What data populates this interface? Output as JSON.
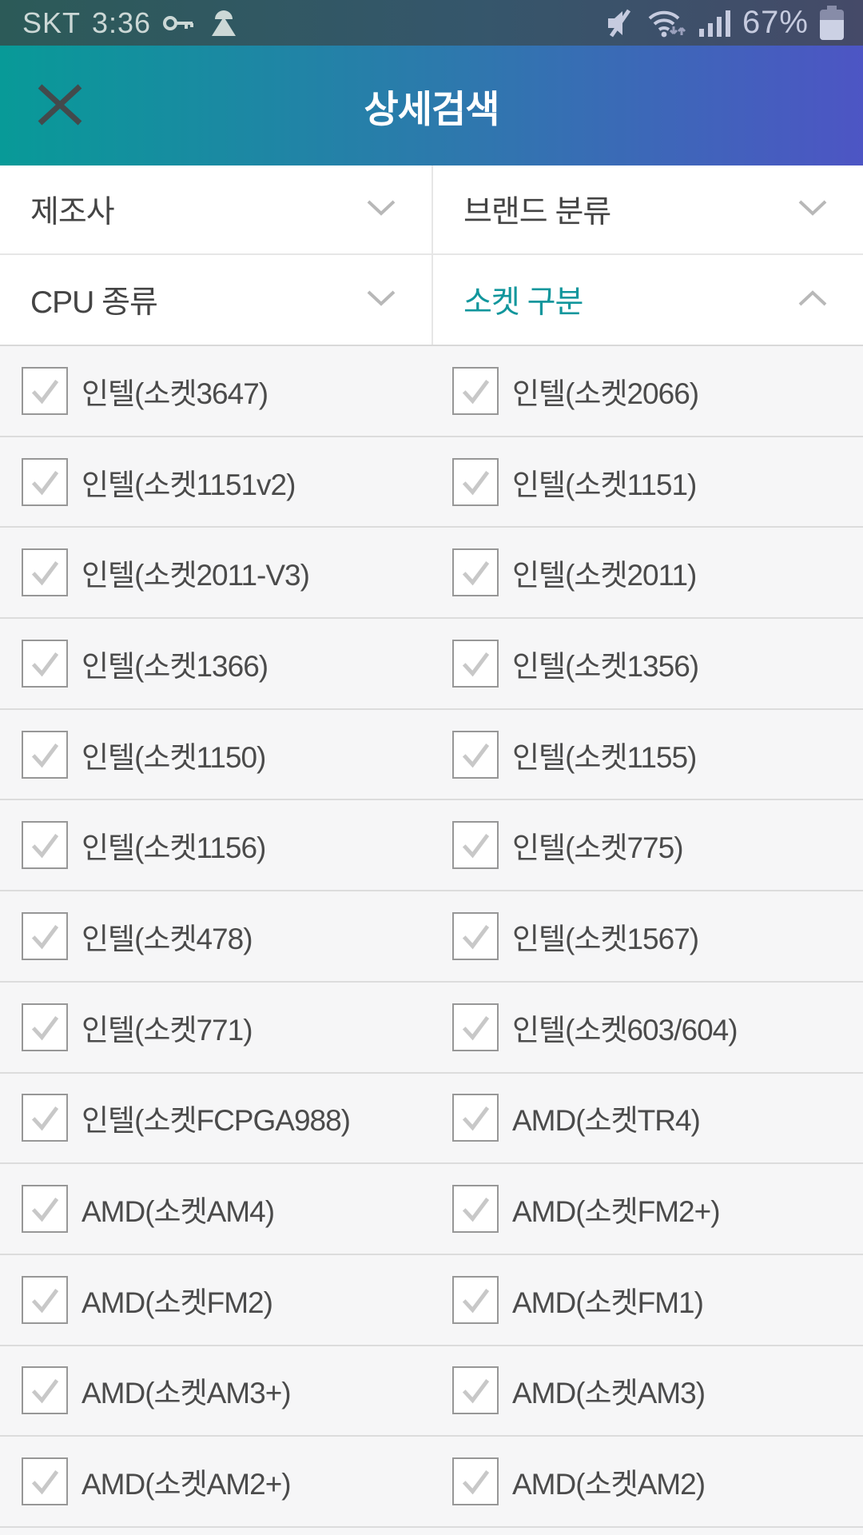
{
  "status_bar": {
    "carrier": "SKT",
    "time": "3:36",
    "battery_percent": "67%",
    "left_icons": [
      "key-icon",
      "mountain-icon"
    ],
    "right_icons": [
      "mute-icon",
      "wifi-icon",
      "signal-icon",
      "battery-icon"
    ]
  },
  "header": {
    "title": "상세검색",
    "close_icon": "close-icon",
    "gradient_start": "#089a98",
    "gradient_end": "#4d55c4"
  },
  "filters": [
    {
      "label": "제조사",
      "expanded": false
    },
    {
      "label": "브랜드 분류",
      "expanded": false
    },
    {
      "label": "CPU 종류",
      "expanded": false
    },
    {
      "label": "소켓 구분",
      "expanded": true
    }
  ],
  "active_filter_color": "#11969c",
  "socket_options": {
    "checkbox_state": "unchecked",
    "rows": [
      [
        "인텔(소켓3647)",
        "인텔(소켓2066)"
      ],
      [
        "인텔(소켓1151v2)",
        "인텔(소켓1151)"
      ],
      [
        "인텔(소켓2011-V3)",
        "인텔(소켓2011)"
      ],
      [
        "인텔(소켓1366)",
        "인텔(소켓1356)"
      ],
      [
        "인텔(소켓1150)",
        "인텔(소켓1155)"
      ],
      [
        "인텔(소켓1156)",
        "인텔(소켓775)"
      ],
      [
        "인텔(소켓478)",
        "인텔(소켓1567)"
      ],
      [
        "인텔(소켓771)",
        "인텔(소켓603/604)"
      ],
      [
        "인텔(소켓FCPGA988)",
        "AMD(소켓TR4)"
      ],
      [
        "AMD(소켓AM4)",
        "AMD(소켓FM2+)"
      ],
      [
        "AMD(소켓FM2)",
        "AMD(소켓FM1)"
      ],
      [
        "AMD(소켓AM3+)",
        "AMD(소켓AM3)"
      ],
      [
        "AMD(소켓AM2+)",
        "AMD(소켓AM2)"
      ]
    ]
  }
}
